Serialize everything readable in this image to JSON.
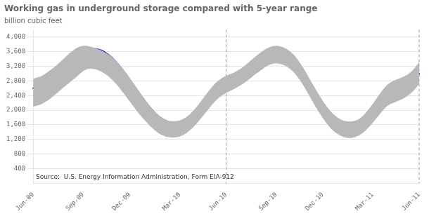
{
  "chart_data": {
    "type": "line",
    "title": "Working gas in underground storage compared with 5-year range",
    "ylabel": "billion cubic feet",
    "annotations": [
      "Source:  U.S. Energy Information Administration, Form EIA-912"
    ],
    "categories": [
      "Jun-09",
      null,
      null,
      null,
      null,
      null,
      null,
      null,
      null,
      null,
      null,
      null,
      null,
      null,
      "Sep-09",
      null,
      null,
      null,
      null,
      null,
      null,
      null,
      null,
      null,
      null,
      null,
      null,
      "Dec-09",
      null,
      null,
      null,
      null,
      null,
      null,
      null,
      null,
      null,
      null,
      null,
      null,
      null,
      "Mar-10",
      null,
      null,
      null,
      null,
      null,
      null,
      null,
      null,
      null,
      null,
      null,
      null,
      "Jun-10",
      null,
      null,
      null,
      null,
      null,
      null,
      null,
      null,
      null,
      null,
      null,
      null,
      null,
      "Sep-10",
      null,
      null,
      null,
      null,
      null,
      null,
      null,
      null,
      null,
      null,
      null,
      null,
      "Dec-10",
      null,
      null,
      null,
      null,
      null,
      null,
      null,
      null,
      null,
      null,
      null,
      null,
      null,
      "Mar-11",
      null,
      null,
      null,
      null,
      null,
      null,
      null,
      null,
      null,
      null,
      null,
      null,
      "Jun-11"
    ],
    "series": [
      {
        "color": "#0000cc",
        "values": [
          2600,
          2620,
          2650,
          2700,
          2760,
          2820,
          2880,
          2960,
          3040,
          3120,
          3200,
          3280,
          3360,
          3480,
          3580,
          3650,
          3680,
          3680,
          3670,
          3640,
          3590,
          3520,
          3440,
          3340,
          3230,
          3110,
          2980,
          2840,
          2700,
          2560,
          2420,
          2290,
          2160,
          2040,
          1930,
          1840,
          1770,
          1710,
          1670,
          1660,
          1660,
          1670,
          1700,
          1760,
          1840,
          1940,
          2050,
          2180,
          2310,
          2440,
          2570,
          2680,
          2760,
          2820,
          2860,
          2890,
          2920,
          2960,
          3010,
          3070,
          3140,
          3230,
          3310,
          3390,
          3470,
          3560,
          3630,
          3670,
          3680,
          3670,
          3640,
          3590,
          3510,
          3410,
          3280,
          3130,
          2960,
          2790,
          2620,
          2450,
          2290,
          2140,
          2000,
          1880,
          1790,
          1720,
          1660,
          1620,
          1600,
          1600,
          1610,
          1640,
          1700,
          1790,
          1900,
          2020,
          2140,
          2270,
          2400,
          2490,
          2540,
          2570,
          2590,
          2610,
          2640,
          2690,
          2770,
          2870,
          3000
        ]
      }
    ],
    "band": {
      "color": "#b8b8b8",
      "upper": [
        2860,
        2890,
        2920,
        2970,
        3040,
        3110,
        3180,
        3270,
        3360,
        3450,
        3540,
        3620,
        3690,
        3740,
        3760,
        3760,
        3740,
        3710,
        3680,
        3640,
        3590,
        3530,
        3460,
        3370,
        3270,
        3150,
        3020,
        2890,
        2750,
        2610,
        2470,
        2330,
        2200,
        2070,
        1960,
        1870,
        1800,
        1750,
        1710,
        1700,
        1700,
        1720,
        1760,
        1820,
        1900,
        2000,
        2120,
        2250,
        2380,
        2510,
        2630,
        2740,
        2820,
        2890,
        2940,
        2980,
        3020,
        3070,
        3130,
        3200,
        3280,
        3370,
        3450,
        3530,
        3600,
        3670,
        3720,
        3750,
        3760,
        3750,
        3720,
        3670,
        3600,
        3510,
        3390,
        3250,
        3090,
        2920,
        2750,
        2580,
        2420,
        2260,
        2120,
        1990,
        1890,
        1810,
        1750,
        1710,
        1690,
        1690,
        1710,
        1750,
        1820,
        1920,
        2040,
        2170,
        2310,
        2450,
        2580,
        2690,
        2760,
        2810,
        2850,
        2890,
        2930,
        2990,
        3070,
        3180,
        3320
      ],
      "lower": [
        2100,
        2120,
        2150,
        2200,
        2260,
        2330,
        2410,
        2490,
        2580,
        2660,
        2740,
        2820,
        2900,
        2990,
        3070,
        3120,
        3140,
        3130,
        3100,
        3060,
        3000,
        2930,
        2840,
        2740,
        2630,
        2500,
        2370,
        2240,
        2110,
        1980,
        1860,
        1750,
        1640,
        1540,
        1450,
        1380,
        1320,
        1280,
        1260,
        1250,
        1260,
        1280,
        1320,
        1380,
        1460,
        1550,
        1660,
        1780,
        1900,
        2020,
        2140,
        2250,
        2340,
        2410,
        2470,
        2520,
        2570,
        2620,
        2680,
        2740,
        2810,
        2890,
        2970,
        3040,
        3110,
        3180,
        3240,
        3270,
        3280,
        3270,
        3240,
        3190,
        3120,
        3030,
        2910,
        2770,
        2610,
        2440,
        2270,
        2100,
        1940,
        1790,
        1650,
        1530,
        1430,
        1360,
        1300,
        1260,
        1240,
        1240,
        1260,
        1300,
        1360,
        1440,
        1540,
        1650,
        1770,
        1890,
        2010,
        2110,
        2170,
        2210,
        2250,
        2290,
        2340,
        2410,
        2490,
        2590,
        2720
      ]
    },
    "vlines": [
      "Jun-10",
      "Jun-11"
    ],
    "ylim": [
      0,
      4200
    ],
    "yticks": [
      400,
      800,
      {
        "value": 1200,
        "label": "1,200"
      },
      {
        "value": 1600,
        "label": "1,600"
      },
      {
        "value": 2000,
        "label": "2,000"
      },
      {
        "value": 2400,
        "label": "2,400"
      },
      {
        "value": 2800,
        "label": "2,800"
      },
      {
        "value": 3200,
        "label": "3,200"
      },
      {
        "value": 3600,
        "label": "3,600"
      },
      {
        "value": 4000,
        "label": "4,000"
      }
    ],
    "grid": true
  }
}
